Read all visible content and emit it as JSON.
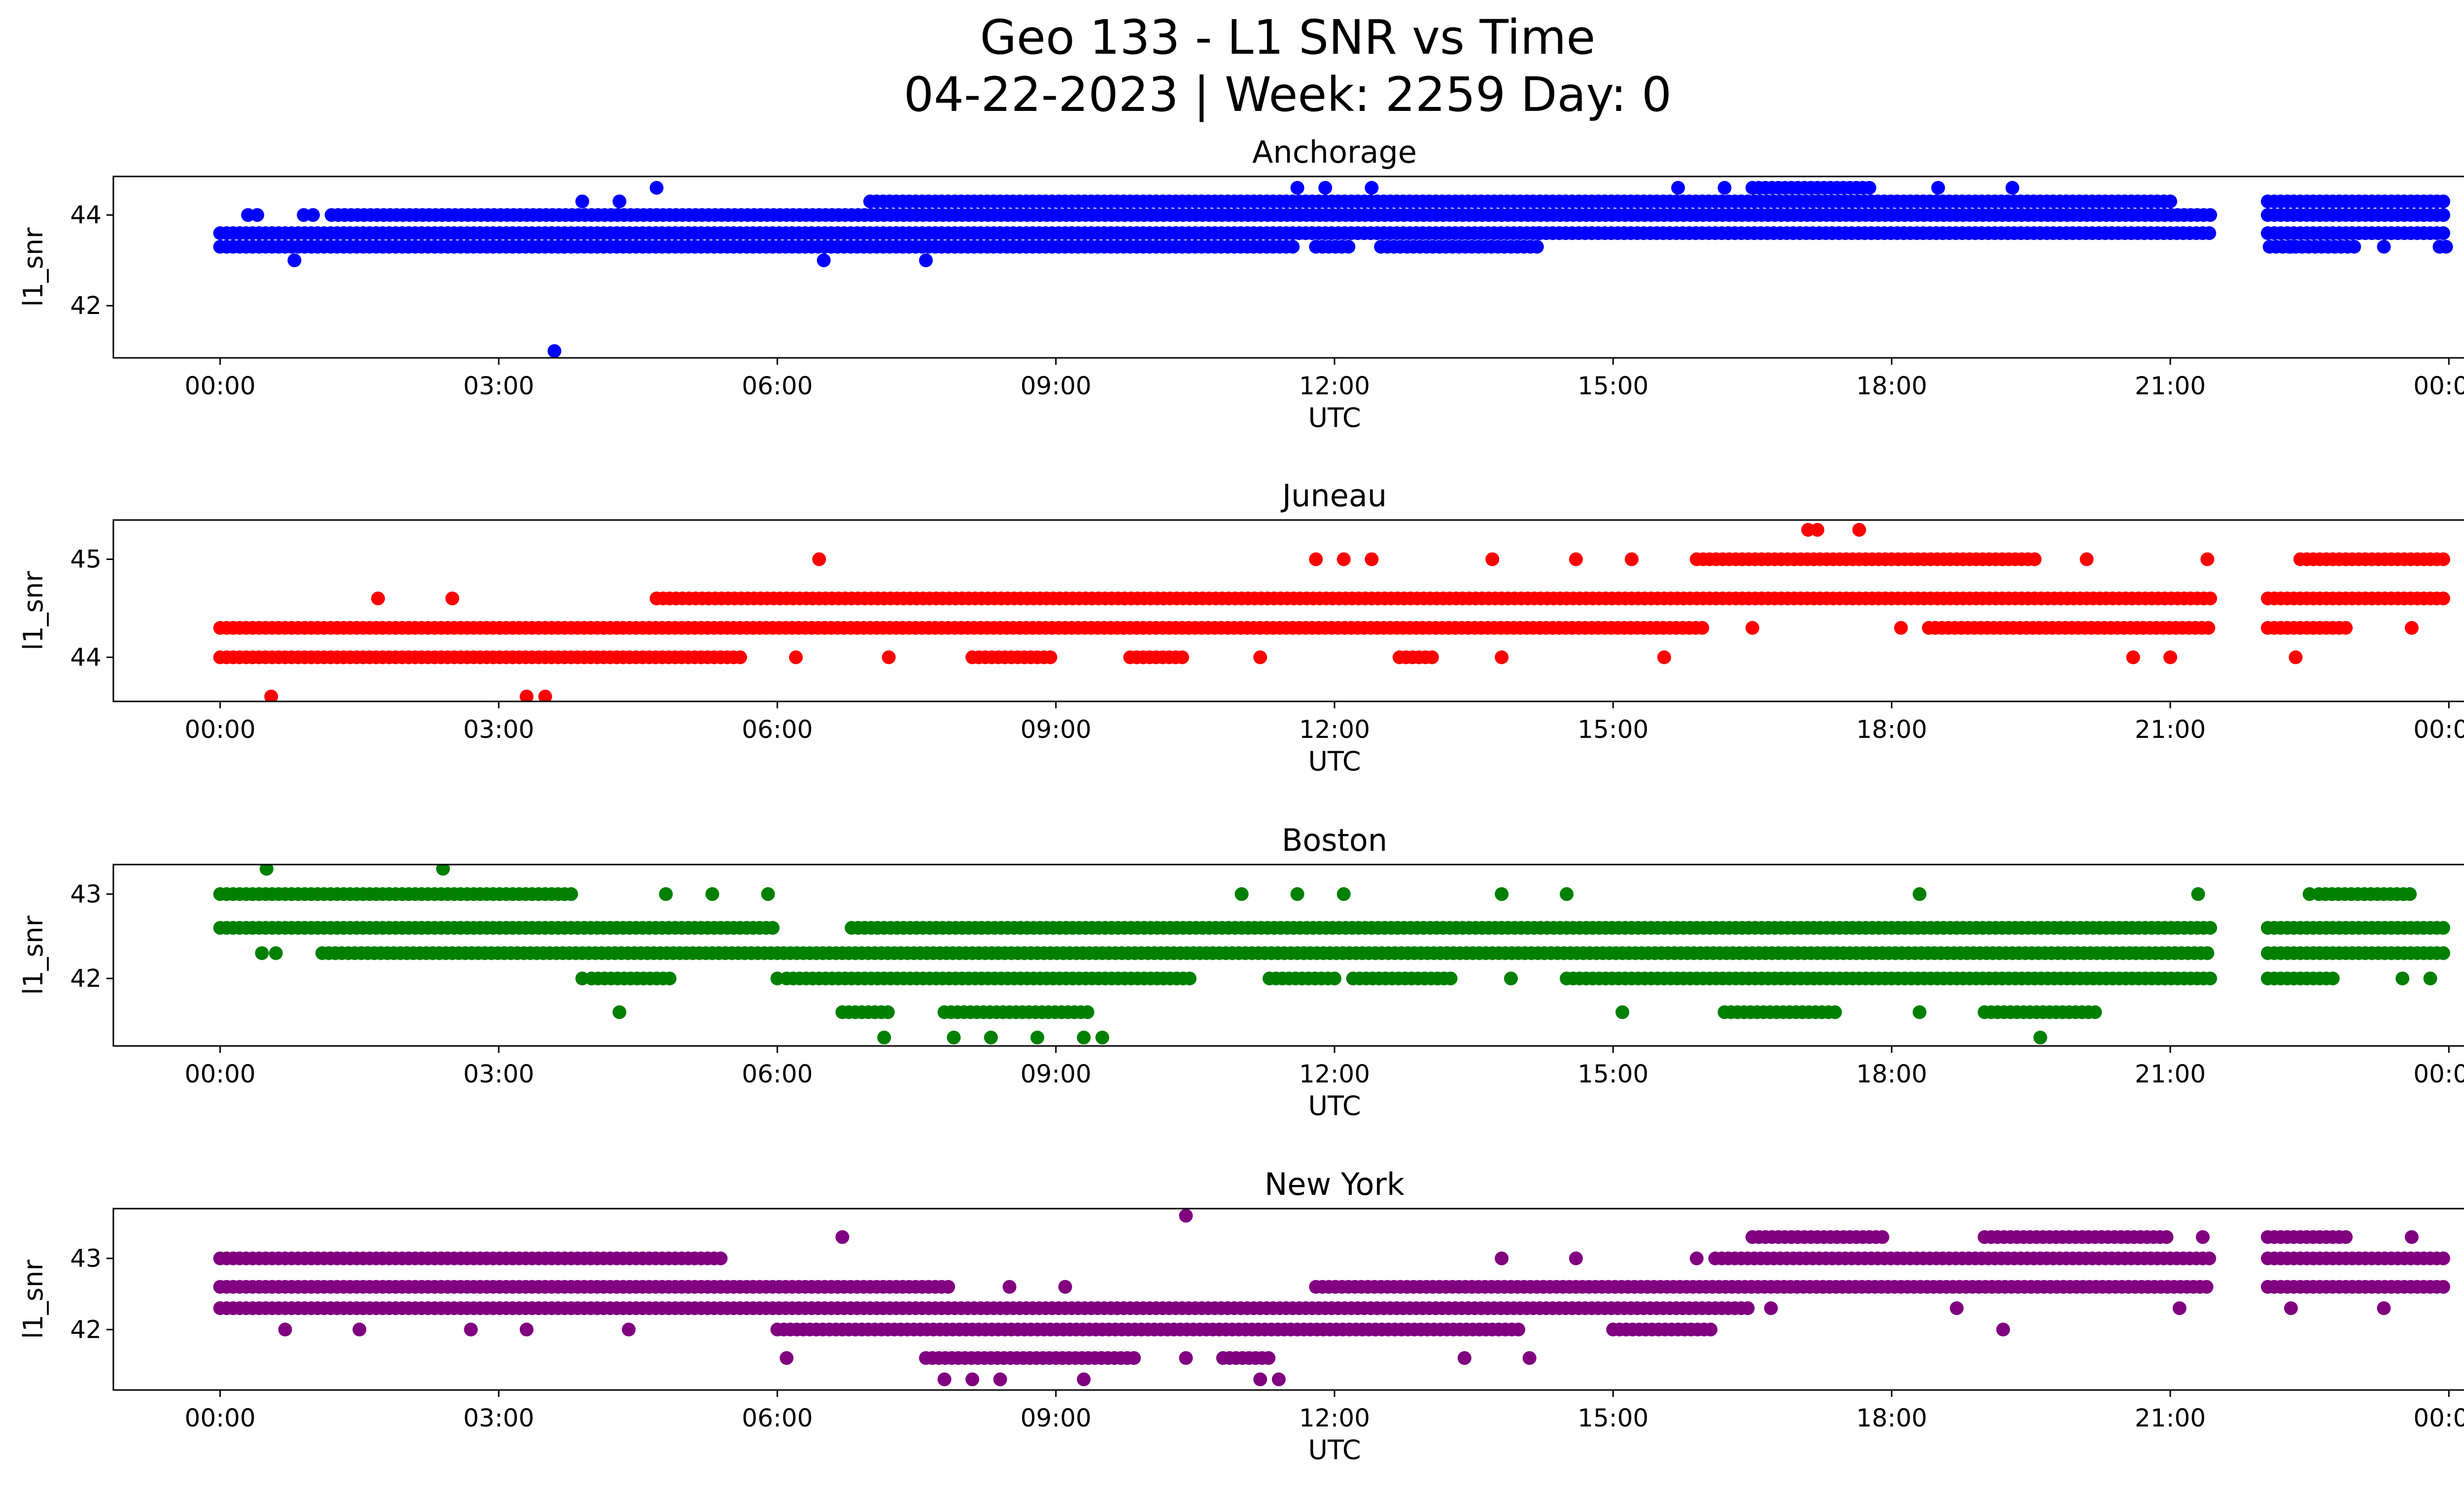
{
  "figure": {
    "title_line1": "Geo 133 - L1 SNR vs Time",
    "title_line2": "04-22-2023 | Week: 2259 Day: 0"
  },
  "chart_data": [
    {
      "type": "scatter",
      "title": "Anchorage",
      "xlabel": "UTC",
      "ylabel": "l1_snr",
      "color": "#0000ff",
      "xlim_hours": [
        -1.15,
        25.15
      ],
      "ylim": [
        40.85,
        44.85
      ],
      "yticks": [
        42,
        44
      ],
      "xticks": [
        "00:00",
        "03:00",
        "06:00",
        "09:00",
        "12:00",
        "15:00",
        "18:00",
        "21:00",
        "00:00"
      ],
      "coverage_hours": [
        [
          0.0,
          21.45
        ],
        [
          22.05,
          24.0
        ]
      ],
      "bands": [
        {
          "y": 43.3,
          "ranges": [
            [
              0.0,
              11.55
            ],
            [
              11.8,
              12.2
            ],
            [
              12.5,
              14.2
            ],
            [
              22.0,
              23.0
            ],
            [
              23.9,
              24.0
            ]
          ]
        },
        {
          "y": 43.6,
          "ranges": [
            [
              0.0,
              21.45
            ],
            [
              22.05,
              24.0
            ]
          ]
        },
        {
          "y": 44.0,
          "ranges": [
            [
              1.2,
              21.45
            ],
            [
              22.05,
              24.0
            ]
          ]
        },
        {
          "y": 44.3,
          "ranges": [
            [
              7.0,
              21.0
            ],
            [
              22.05,
              24.0
            ]
          ]
        },
        {
          "y": 44.6,
          "ranges": [
            [
              16.5,
              17.8
            ]
          ]
        }
      ],
      "points": [
        {
          "x": 0.3,
          "y": 44.0
        },
        {
          "x": 0.4,
          "y": 44.0
        },
        {
          "x": 0.8,
          "y": 43.0
        },
        {
          "x": 0.9,
          "y": 44.0
        },
        {
          "x": 1.0,
          "y": 44.0
        },
        {
          "x": 3.6,
          "y": 41.0
        },
        {
          "x": 3.7,
          "y": 43.3
        },
        {
          "x": 3.9,
          "y": 44.3
        },
        {
          "x": 4.3,
          "y": 44.3
        },
        {
          "x": 4.7,
          "y": 44.6
        },
        {
          "x": 6.5,
          "y": 43.0
        },
        {
          "x": 7.6,
          "y": 43.0
        },
        {
          "x": 11.6,
          "y": 44.6
        },
        {
          "x": 11.9,
          "y": 44.6
        },
        {
          "x": 12.4,
          "y": 44.6
        },
        {
          "x": 15.7,
          "y": 44.6
        },
        {
          "x": 16.2,
          "y": 44.6
        },
        {
          "x": 18.5,
          "y": 44.6
        },
        {
          "x": 19.3,
          "y": 44.6
        },
        {
          "x": 14.2,
          "y": 43.6
        },
        {
          "x": 22.3,
          "y": 43.3
        },
        {
          "x": 22.7,
          "y": 43.3
        },
        {
          "x": 23.3,
          "y": 43.3
        }
      ]
    },
    {
      "type": "scatter",
      "title": "Juneau",
      "xlabel": "UTC",
      "ylabel": "l1_snr",
      "color": "#ff0000",
      "xlim_hours": [
        -1.15,
        25.15
      ],
      "ylim": [
        43.55,
        45.4
      ],
      "yticks": [
        44,
        45
      ],
      "xticks": [
        "00:00",
        "03:00",
        "06:00",
        "09:00",
        "12:00",
        "15:00",
        "18:00",
        "21:00",
        "00:00"
      ],
      "coverage_hours": [
        [
          0.0,
          21.45
        ],
        [
          22.05,
          24.0
        ]
      ],
      "bands": [
        {
          "y": 44.0,
          "ranges": [
            [
              0.0,
              5.6
            ],
            [
              8.1,
              9.0
            ],
            [
              9.8,
              10.4
            ],
            [
              12.7,
              13.1
            ]
          ]
        },
        {
          "y": 44.3,
          "ranges": [
            [
              0.0,
              16.0
            ],
            [
              18.4,
              21.45
            ],
            [
              22.05,
              22.9
            ]
          ]
        },
        {
          "y": 44.6,
          "ranges": [
            [
              4.7,
              21.45
            ],
            [
              22.05,
              24.0
            ]
          ]
        },
        {
          "y": 45.0,
          "ranges": [
            [
              15.9,
              19.6
            ],
            [
              22.4,
              24.0
            ]
          ]
        }
      ],
      "points": [
        {
          "x": 0.55,
          "y": 43.6
        },
        {
          "x": 3.3,
          "y": 43.6
        },
        {
          "x": 3.5,
          "y": 43.6
        },
        {
          "x": 6.45,
          "y": 45.0
        },
        {
          "x": 11.8,
          "y": 45.0
        },
        {
          "x": 12.1,
          "y": 45.0
        },
        {
          "x": 12.4,
          "y": 45.0
        },
        {
          "x": 13.7,
          "y": 45.0
        },
        {
          "x": 14.6,
          "y": 45.0
        },
        {
          "x": 15.2,
          "y": 45.0
        },
        {
          "x": 15.55,
          "y": 44.0
        },
        {
          "x": 16.5,
          "y": 44.3
        },
        {
          "x": 17.1,
          "y": 45.3
        },
        {
          "x": 17.2,
          "y": 45.3
        },
        {
          "x": 17.65,
          "y": 45.3
        },
        {
          "x": 18.1,
          "y": 44.3
        },
        {
          "x": 20.1,
          "y": 45.0
        },
        {
          "x": 20.6,
          "y": 44.0
        },
        {
          "x": 21.0,
          "y": 44.0
        },
        {
          "x": 21.4,
          "y": 45.0
        },
        {
          "x": 22.35,
          "y": 44.0
        },
        {
          "x": 13.8,
          "y": 44.0
        },
        {
          "x": 11.2,
          "y": 44.0
        },
        {
          "x": 6.2,
          "y": 44.0
        },
        {
          "x": 7.2,
          "y": 44.0
        },
        {
          "x": 1.7,
          "y": 44.6
        },
        {
          "x": 2.5,
          "y": 44.6
        },
        {
          "x": 23.6,
          "y": 44.3
        }
      ]
    },
    {
      "type": "scatter",
      "title": "Boston",
      "xlabel": "UTC",
      "ylabel": "l1_snr",
      "color": "#008000",
      "xlim_hours": [
        -1.15,
        25.15
      ],
      "ylim": [
        41.2,
        43.35
      ],
      "yticks": [
        42,
        43
      ],
      "xticks": [
        "00:00",
        "03:00",
        "06:00",
        "09:00",
        "12:00",
        "15:00",
        "18:00",
        "21:00",
        "00:00"
      ],
      "coverage_hours": [
        [
          0.0,
          21.45
        ],
        [
          22.05,
          24.0
        ]
      ],
      "bands": [
        {
          "y": 42.0,
          "ranges": [
            [
              4.0,
              4.9
            ],
            [
              6.1,
              10.5
            ],
            [
              11.3,
              12.0
            ],
            [
              12.2,
              13.3
            ],
            [
              14.5,
              21.45
            ],
            [
              22.05,
              22.8
            ]
          ]
        },
        {
          "y": 42.3,
          "ranges": [
            [
              1.1,
              21.45
            ],
            [
              22.05,
              24.0
            ]
          ]
        },
        {
          "y": 42.6,
          "ranges": [
            [
              0.0,
              6.0
            ],
            [
              6.8,
              21.45
            ],
            [
              22.05,
              24.0
            ]
          ]
        },
        {
          "y": 43.0,
          "ranges": [
            [
              0.0,
              3.8
            ],
            [
              22.6,
              23.6
            ]
          ]
        },
        {
          "y": 41.6,
          "ranges": [
            [
              6.7,
              7.2
            ],
            [
              7.8,
              9.4
            ],
            [
              16.2,
              17.4
            ],
            [
              19.0,
              20.2
            ]
          ]
        }
      ],
      "points": [
        {
          "x": 0.5,
          "y": 43.3
        },
        {
          "x": 2.4,
          "y": 43.3
        },
        {
          "x": 7.15,
          "y": 41.3
        },
        {
          "x": 7.9,
          "y": 41.3
        },
        {
          "x": 8.3,
          "y": 41.3
        },
        {
          "x": 8.8,
          "y": 41.3
        },
        {
          "x": 9.3,
          "y": 41.3
        },
        {
          "x": 9.5,
          "y": 41.3
        },
        {
          "x": 19.6,
          "y": 41.3
        },
        {
          "x": 4.3,
          "y": 41.6
        },
        {
          "x": 15.1,
          "y": 41.6
        },
        {
          "x": 18.3,
          "y": 41.6
        },
        {
          "x": 4.8,
          "y": 43.0
        },
        {
          "x": 5.3,
          "y": 43.0
        },
        {
          "x": 5.9,
          "y": 43.0
        },
        {
          "x": 11.0,
          "y": 43.0
        },
        {
          "x": 11.6,
          "y": 43.0
        },
        {
          "x": 12.1,
          "y": 43.0
        },
        {
          "x": 13.8,
          "y": 43.0
        },
        {
          "x": 14.5,
          "y": 43.0
        },
        {
          "x": 18.3,
          "y": 43.0
        },
        {
          "x": 21.3,
          "y": 43.0
        },
        {
          "x": 22.5,
          "y": 43.0
        },
        {
          "x": 3.9,
          "y": 42.0
        },
        {
          "x": 6.0,
          "y": 42.0
        },
        {
          "x": 13.9,
          "y": 42.0
        },
        {
          "x": 23.5,
          "y": 42.0
        },
        {
          "x": 23.8,
          "y": 42.0
        },
        {
          "x": 0.45,
          "y": 42.3
        },
        {
          "x": 0.6,
          "y": 42.3
        }
      ]
    },
    {
      "type": "scatter",
      "title": "New York",
      "xlabel": "UTC",
      "ylabel": "l1_snr",
      "color": "#800080",
      "xlim_hours": [
        -1.15,
        25.15
      ],
      "ylim": [
        41.15,
        43.7
      ],
      "yticks": [
        42,
        43
      ],
      "xticks": [
        "00:00",
        "03:00",
        "06:00",
        "09:00",
        "12:00",
        "15:00",
        "18:00",
        "21:00",
        "00:00"
      ],
      "coverage_hours": [
        [
          0.0,
          21.45
        ],
        [
          22.05,
          24.0
        ]
      ],
      "bands": [
        {
          "y": 42.3,
          "ranges": [
            [
              0.0,
              16.5
            ]
          ]
        },
        {
          "y": 42.6,
          "ranges": [
            [
              0.0,
              7.9
            ],
            [
              11.8,
              21.45
            ],
            [
              22.05,
              24.0
            ]
          ]
        },
        {
          "y": 43.0,
          "ranges": [
            [
              0.0,
              5.4
            ],
            [
              16.1,
              21.45
            ],
            [
              22.05,
              24.0
            ]
          ]
        },
        {
          "y": 42.0,
          "ranges": [
            [
              6.0,
              14.0
            ],
            [
              15.0,
              16.1
            ]
          ]
        },
        {
          "y": 41.6,
          "ranges": [
            [
              7.6,
              9.9
            ],
            [
              10.8,
              11.3
            ]
          ]
        },
        {
          "y": 43.3,
          "ranges": [
            [
              16.5,
              17.9
            ],
            [
              19.0,
              21.0
            ],
            [
              22.05,
              22.9
            ]
          ]
        }
      ],
      "points": [
        {
          "x": 6.7,
          "y": 43.3
        },
        {
          "x": 10.4,
          "y": 43.6
        },
        {
          "x": 7.8,
          "y": 41.3
        },
        {
          "x": 8.1,
          "y": 41.3
        },
        {
          "x": 8.4,
          "y": 41.3
        },
        {
          "x": 9.3,
          "y": 41.3
        },
        {
          "x": 11.2,
          "y": 41.3
        },
        {
          "x": 11.4,
          "y": 41.3
        },
        {
          "x": 0.7,
          "y": 42.0
        },
        {
          "x": 1.5,
          "y": 42.0
        },
        {
          "x": 2.7,
          "y": 42.0
        },
        {
          "x": 3.3,
          "y": 42.0
        },
        {
          "x": 4.4,
          "y": 42.0
        },
        {
          "x": 6.1,
          "y": 41.6
        },
        {
          "x": 10.4,
          "y": 41.6
        },
        {
          "x": 13.4,
          "y": 41.6
        },
        {
          "x": 14.1,
          "y": 41.6
        },
        {
          "x": 13.8,
          "y": 43.0
        },
        {
          "x": 14.6,
          "y": 43.0
        },
        {
          "x": 15.9,
          "y": 43.0
        },
        {
          "x": 9.1,
          "y": 42.6
        },
        {
          "x": 8.5,
          "y": 42.6
        },
        {
          "x": 22.3,
          "y": 42.3
        },
        {
          "x": 23.3,
          "y": 42.3
        },
        {
          "x": 16.7,
          "y": 42.3
        },
        {
          "x": 18.7,
          "y": 42.3
        },
        {
          "x": 19.2,
          "y": 42.0
        },
        {
          "x": 21.1,
          "y": 42.3
        },
        {
          "x": 21.35,
          "y": 43.3
        },
        {
          "x": 23.6,
          "y": 43.3
        }
      ]
    }
  ]
}
